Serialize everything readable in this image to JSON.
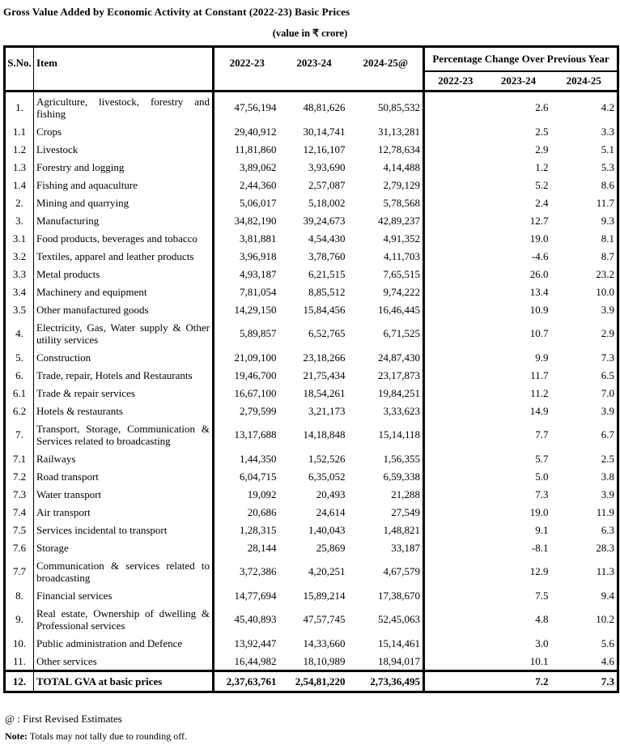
{
  "title": "Gross Value Added by Economic Activity at Constant (2022-23) Basic Prices",
  "subtitle": "(value in ₹ crore)",
  "table": {
    "headers": {
      "sno": "S.No.",
      "item": "Item",
      "value_years": [
        "2022-23",
        "2023-24",
        "2024-25@"
      ],
      "pct_title": "Percentage Change Over Previous Year",
      "pct_years": [
        "2022-23",
        "2023-24",
        "2024-25"
      ]
    },
    "rows": [
      {
        "sno": "1.",
        "item": "Agriculture, livestock, forestry and fishing",
        "v": [
          "47,56,194",
          "48,81,626",
          "50,85,532"
        ],
        "p": [
          "",
          "2.6",
          "4.2"
        ]
      },
      {
        "sno": "1.1",
        "item": "Crops",
        "v": [
          "29,40,912",
          "30,14,741",
          "31,13,281"
        ],
        "p": [
          "",
          "2.5",
          "3.3"
        ]
      },
      {
        "sno": "1.2",
        "item": "Livestock",
        "v": [
          "11,81,860",
          "12,16,107",
          "12,78,634"
        ],
        "p": [
          "",
          "2.9",
          "5.1"
        ]
      },
      {
        "sno": "1.3",
        "item": "Forestry and logging",
        "v": [
          "3,89,062",
          "3,93,690",
          "4,14,488"
        ],
        "p": [
          "",
          "1.2",
          "5.3"
        ]
      },
      {
        "sno": "1.4",
        "item": "Fishing and aquaculture",
        "v": [
          "2,44,360",
          "2,57,087",
          "2,79,129"
        ],
        "p": [
          "",
          "5.2",
          "8.6"
        ]
      },
      {
        "sno": "2.",
        "item": "Mining and quarrying",
        "v": [
          "5,06,017",
          "5,18,002",
          "5,78,568"
        ],
        "p": [
          "",
          "2.4",
          "11.7"
        ]
      },
      {
        "sno": "3.",
        "item": "Manufacturing",
        "v": [
          "34,82,190",
          "39,24,673",
          "42,89,237"
        ],
        "p": [
          "",
          "12.7",
          "9.3"
        ]
      },
      {
        "sno": "3.1",
        "item": "Food products, beverages and tobacco",
        "v": [
          "3,81,881",
          "4,54,430",
          "4,91,352"
        ],
        "p": [
          "",
          "19.0",
          "8.1"
        ]
      },
      {
        "sno": "3.2",
        "item": "Textiles, apparel and leather products",
        "v": [
          "3,96,918",
          "3,78,760",
          "4,11,703"
        ],
        "p": [
          "",
          "-4.6",
          "8.7"
        ]
      },
      {
        "sno": "3.3",
        "item": "Metal products",
        "v": [
          "4,93,187",
          "6,21,515",
          "7,65,515"
        ],
        "p": [
          "",
          "26.0",
          "23.2"
        ]
      },
      {
        "sno": "3.4",
        "item": "Machinery and equipment",
        "v": [
          "7,81,054",
          "8,85,512",
          "9,74,222"
        ],
        "p": [
          "",
          "13.4",
          "10.0"
        ]
      },
      {
        "sno": "3.5",
        "item": "Other manufactured goods",
        "v": [
          "14,29,150",
          "15,84,456",
          "16,46,445"
        ],
        "p": [
          "",
          "10.9",
          "3.9"
        ]
      },
      {
        "sno": "4.",
        "item": "Electricity, Gas, Water supply & Other utility services",
        "v": [
          "5,89,857",
          "6,52,765",
          "6,71,525"
        ],
        "p": [
          "",
          "10.7",
          "2.9"
        ]
      },
      {
        "sno": "5.",
        "item": "Construction",
        "v": [
          "21,09,100",
          "23,18,266",
          "24,87,430"
        ],
        "p": [
          "",
          "9.9",
          "7.3"
        ]
      },
      {
        "sno": "6.",
        "item": "Trade, repair, Hotels and Restaurants",
        "v": [
          "19,46,700",
          "21,75,434",
          "23,17,873"
        ],
        "p": [
          "",
          "11.7",
          "6.5"
        ]
      },
      {
        "sno": "6.1",
        "item": "Trade & repair services",
        "v": [
          "16,67,100",
          "18,54,261",
          "19,84,251"
        ],
        "p": [
          "",
          "11.2",
          "7.0"
        ]
      },
      {
        "sno": "6.2",
        "item": "Hotels & restaurants",
        "v": [
          "2,79,599",
          "3,21,173",
          "3,33,623"
        ],
        "p": [
          "",
          "14.9",
          "3.9"
        ]
      },
      {
        "sno": "7.",
        "item": "Transport, Storage, Communication & Services related to broadcasting",
        "v": [
          "13,17,688",
          "14,18,848",
          "15,14,118"
        ],
        "p": [
          "",
          "7.7",
          "6.7"
        ]
      },
      {
        "sno": "7.1",
        "item": "Railways",
        "v": [
          "1,44,350",
          "1,52,526",
          "1,56,355"
        ],
        "p": [
          "",
          "5.7",
          "2.5"
        ]
      },
      {
        "sno": "7.2",
        "item": "Road transport",
        "v": [
          "6,04,715",
          "6,35,052",
          "6,59,338"
        ],
        "p": [
          "",
          "5.0",
          "3.8"
        ]
      },
      {
        "sno": "7.3",
        "item": "Water transport",
        "v": [
          "19,092",
          "20,493",
          "21,288"
        ],
        "p": [
          "",
          "7.3",
          "3.9"
        ]
      },
      {
        "sno": "7.4",
        "item": "Air transport",
        "v": [
          "20,686",
          "24,614",
          "27,549"
        ],
        "p": [
          "",
          "19.0",
          "11.9"
        ]
      },
      {
        "sno": "7.5",
        "item": "Services incidental to transport",
        "v": [
          "1,28,315",
          "1,40,043",
          "1,48,821"
        ],
        "p": [
          "",
          "9.1",
          "6.3"
        ]
      },
      {
        "sno": "7.6",
        "item": "Storage",
        "v": [
          "28,144",
          "25,869",
          "33,187"
        ],
        "p": [
          "",
          "-8.1",
          "28.3"
        ]
      },
      {
        "sno": "7.7",
        "item": "Communication & services related to broadcasting",
        "v": [
          "3,72,386",
          "4,20,251",
          "4,67,579"
        ],
        "p": [
          "",
          "12.9",
          "11.3"
        ]
      },
      {
        "sno": "8.",
        "item": "Financial services",
        "v": [
          "14,77,694",
          "15,89,214",
          "17,38,670"
        ],
        "p": [
          "",
          "7.5",
          "9.4"
        ]
      },
      {
        "sno": "9.",
        "item": "Real estate, Ownership of dwelling & Professional services",
        "v": [
          "45,40,893",
          "47,57,745",
          "52,45,063"
        ],
        "p": [
          "",
          "4.8",
          "10.2"
        ]
      },
      {
        "sno": "10.",
        "item": "Public administration and Defence",
        "v": [
          "13,92,447",
          "14,33,660",
          "15,14,461"
        ],
        "p": [
          "",
          "3.0",
          "5.6"
        ]
      },
      {
        "sno": "11.",
        "item": "Other services",
        "v": [
          "16,44,982",
          "18,10,989",
          "18,94,017"
        ],
        "p": [
          "",
          "10.1",
          "4.6"
        ]
      }
    ],
    "total_row": {
      "sno": "12.",
      "item": "TOTAL GVA at basic prices",
      "v": [
        "2,37,63,761",
        "2,54,81,220",
        "2,73,36,495"
      ],
      "p": [
        "",
        "7.2",
        "7.3"
      ]
    }
  },
  "footnotes": {
    "fre_prefix": "@ :",
    "fre_text": "First Revised Estimates",
    "note_prefix": "Note:",
    "note_text": "Totals may not tally due to rounding off."
  }
}
